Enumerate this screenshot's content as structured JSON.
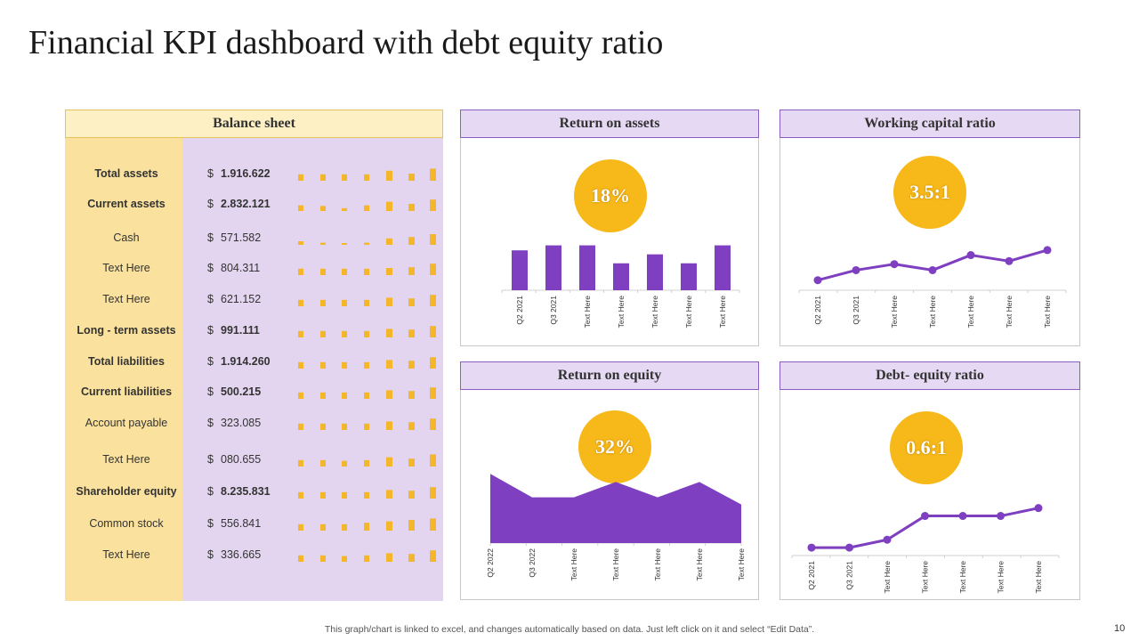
{
  "title": "Financial KPI dashboard with debt equity ratio",
  "balance_sheet": {
    "header": "Balance sheet",
    "rows": [
      {
        "label": "Total assets",
        "bold": true,
        "currency": "$",
        "value": "1.916.622",
        "spark": [
          0.45,
          0.45,
          0.45,
          0.45,
          0.7,
          0.5,
          0.85,
          0.85
        ]
      },
      {
        "label": "Current assets",
        "bold": true,
        "currency": "$",
        "value": "2.832.121",
        "spark": [
          0.4,
          0.35,
          0.2,
          0.4,
          0.65,
          0.5,
          0.8,
          0.85
        ]
      },
      {
        "label": "Cash",
        "bold": false,
        "currency": "$",
        "value": "571.582",
        "spark": [
          0.25,
          0.15,
          0.1,
          0.15,
          0.45,
          0.55,
          0.75,
          0.85
        ]
      },
      {
        "label": "Text Here",
        "bold": false,
        "currency": "$",
        "value": "804.311",
        "spark": [
          0.45,
          0.45,
          0.45,
          0.45,
          0.5,
          0.55,
          0.8,
          0.85
        ]
      },
      {
        "label": "Text Here",
        "bold": false,
        "currency": "$",
        "value": "621.152",
        "spark": [
          0.45,
          0.45,
          0.45,
          0.45,
          0.6,
          0.55,
          0.8,
          0.85
        ]
      },
      {
        "label": "Long  - term assets",
        "bold": true,
        "currency": "$",
        "value": "991.111",
        "spark": [
          0.45,
          0.45,
          0.45,
          0.45,
          0.6,
          0.55,
          0.8,
          0.85
        ]
      },
      {
        "label": "Total liabilities",
        "bold": true,
        "currency": "$",
        "value": "1.914.260",
        "spark": [
          0.45,
          0.45,
          0.45,
          0.45,
          0.6,
          0.55,
          0.8,
          0.85
        ]
      },
      {
        "label": "Current liabilities",
        "bold": true,
        "currency": "$",
        "value": "500.215",
        "spark": [
          0.45,
          0.45,
          0.45,
          0.45,
          0.6,
          0.55,
          0.8,
          0.85
        ]
      },
      {
        "label": "Account payable",
        "bold": false,
        "currency": "$",
        "value": "323.085",
        "spark": [
          0.45,
          0.45,
          0.45,
          0.45,
          0.6,
          0.55,
          0.8,
          0.85
        ]
      },
      {
        "label": "Text Here",
        "bold": false,
        "currency": "$",
        "value": "080.655",
        "spark": [
          0.45,
          0.45,
          0.4,
          0.45,
          0.65,
          0.55,
          0.85,
          0.9
        ]
      },
      {
        "label": "Shareholder equity",
        "bold": true,
        "currency": "$",
        "value": "8.235.831",
        "spark": [
          0.45,
          0.45,
          0.45,
          0.45,
          0.6,
          0.55,
          0.8,
          0.85
        ]
      },
      {
        "label": "Common stock",
        "bold": false,
        "currency": "$",
        "value": "556.841",
        "spark": [
          0.45,
          0.45,
          0.45,
          0.55,
          0.65,
          0.75,
          0.85,
          0.9
        ]
      },
      {
        "label": "Text Here",
        "bold": false,
        "currency": "$",
        "value": "336.665",
        "spark": [
          0.45,
          0.45,
          0.4,
          0.45,
          0.6,
          0.55,
          0.8,
          0.85
        ]
      }
    ]
  },
  "panels": {
    "roa": {
      "title": "Return on assets",
      "kpi": "18%"
    },
    "wcr": {
      "title": "Working capital ratio",
      "kpi": "3.5:1"
    },
    "roe": {
      "title": "Return on equity",
      "kpi": "32%"
    },
    "der": {
      "title": "Debt- equity ratio",
      "kpi": "0.6:1"
    }
  },
  "chart_data": [
    {
      "id": "roa",
      "type": "bar",
      "title": "Return on assets",
      "categories": [
        "Q2 2021",
        "Q3 2021",
        "Text Here",
        "Text Here",
        "Text Here",
        "Text Here",
        "Text Here"
      ],
      "values": [
        40,
        45,
        45,
        27,
        36,
        27,
        45
      ],
      "ylim": [
        0,
        50
      ]
    },
    {
      "id": "wcr",
      "type": "line",
      "title": "Working capital ratio",
      "categories": [
        "Q2 2021",
        "Q3 2021",
        "Text Here",
        "Text Here",
        "Text Here",
        "Text Here",
        "Text Here"
      ],
      "values": [
        1.0,
        2.0,
        2.6,
        2.0,
        3.5,
        2.9,
        4.0
      ],
      "ylim": [
        0,
        5.5
      ]
    },
    {
      "id": "roe",
      "type": "area",
      "title": "Return on equity",
      "categories": [
        "Q2 2022",
        "Q3 2022",
        "Text Here",
        "Text Here",
        "Text Here",
        "Text Here",
        "Text Here"
      ],
      "values": [
        68,
        45,
        45,
        60,
        45,
        60,
        38
      ],
      "ylim": [
        0,
        70
      ]
    },
    {
      "id": "der",
      "type": "line",
      "title": "Debt- equity ratio",
      "categories": [
        "Q2 2021",
        "Q3 2021",
        "Text Here",
        "Text Here",
        "Text Here",
        "Text Here",
        "Text Here"
      ],
      "values": [
        0.1,
        0.1,
        0.2,
        0.5,
        0.5,
        0.5,
        0.6
      ],
      "ylim": [
        0,
        0.9
      ]
    }
  ],
  "footer": "This graph/chart is linked to excel,  and changes automatically based on data. Just left click on it and select “Edit Data”.",
  "page_number": "10",
  "colors": {
    "purple": "#7e3fc1",
    "gold": "#f7b81a",
    "spark": "#f4b62a"
  }
}
